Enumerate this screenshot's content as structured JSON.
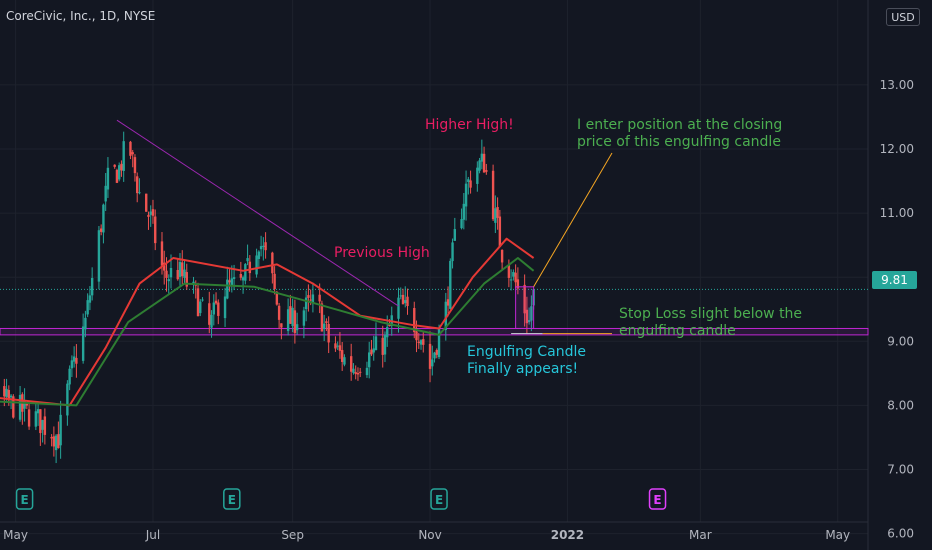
{
  "symbol_title": "CoreCivic, Inc., 1D, NYSE",
  "currency_label": "USD",
  "last_price_label": "9.81",
  "colors": {
    "background": "#131722",
    "up": "#26a69a",
    "down": "#ef5350",
    "ma_fast": "#e53935",
    "ma_slow": "#2e7d32",
    "trendline": "#9c27b0",
    "support": "#c026d3",
    "annotation_pink": "#e91e63",
    "annotation_green": "#4caf50",
    "annotation_cyan": "#26c6da",
    "callout_line": "#f5a623"
  },
  "annotations": {
    "higher_high": "Higher High!",
    "previous_high": "Previous High",
    "entry_line1": "I enter position at the closing",
    "entry_line2": "price of this engulfing candle",
    "stop_line1": "Stop Loss slight below the",
    "stop_line2": "engulfing candle",
    "engulf_line1": "Engulfing Candle",
    "engulf_line2": "Finally appears!"
  },
  "earnings_markers": [
    {
      "label": "E",
      "date": "2021-05-05",
      "style": "past"
    },
    {
      "label": "E",
      "date": "2021-08-05",
      "style": "past"
    },
    {
      "label": "E",
      "date": "2021-11-05",
      "style": "past"
    },
    {
      "label": "E",
      "date": "2022-02-10",
      "style": "upcoming"
    }
  ],
  "chart_data": {
    "type": "candlestick",
    "title": "CoreCivic, Inc., 1D, NYSE",
    "xlabel": "",
    "ylabel": "",
    "x_tick_labels": [
      "May",
      "Jul",
      "Sep",
      "Nov",
      "2022",
      "Mar",
      "May"
    ],
    "x_tick_dates": [
      "2021-05-01",
      "2021-07-01",
      "2021-09-01",
      "2021-11-01",
      "2022-01-01",
      "2022-03-01",
      "2022-05-01"
    ],
    "y_tick_labels": [
      "6.00",
      "7.00",
      "8.00",
      "9.00",
      "10.00",
      "11.00",
      "12.00",
      "13.00"
    ],
    "ylim": [
      5.9,
      13.95
    ],
    "last_price": 9.81,
    "x_range": [
      "2021-04-01",
      "2022-05-10"
    ],
    "price_path": [
      [
        "2021-04-01",
        8.3
      ],
      [
        "2021-04-25",
        8.1
      ],
      [
        "2021-05-10",
        7.8
      ],
      [
        "2021-05-20",
        7.5
      ],
      [
        "2021-05-25",
        8.4
      ],
      [
        "2021-06-01",
        9.3
      ],
      [
        "2021-06-06",
        10.4
      ],
      [
        "2021-06-11",
        11.5
      ],
      [
        "2021-06-16",
        11.7
      ],
      [
        "2021-06-20",
        12.1
      ],
      [
        "2021-06-25",
        11.3
      ],
      [
        "2021-06-30",
        10.9
      ],
      [
        "2021-07-06",
        10.0
      ],
      [
        "2021-07-12",
        10.1
      ],
      [
        "2021-07-20",
        9.7
      ],
      [
        "2021-07-26",
        9.2
      ],
      [
        "2021-08-01",
        9.8
      ],
      [
        "2021-08-10",
        9.9
      ],
      [
        "2021-08-17",
        10.6
      ],
      [
        "2021-08-22",
        10.1
      ],
      [
        "2021-08-26",
        9.4
      ],
      [
        "2021-09-01",
        9.3
      ],
      [
        "2021-09-06",
        9.5
      ],
      [
        "2021-09-12",
        9.6
      ],
      [
        "2021-09-17",
        9.0
      ],
      [
        "2021-09-27",
        8.6
      ],
      [
        "2021-10-06",
        8.8
      ],
      [
        "2021-10-12",
        9.0
      ],
      [
        "2021-10-18",
        9.6
      ],
      [
        "2021-10-23",
        9.4
      ],
      [
        "2021-10-28",
        9.1
      ],
      [
        "2021-11-01",
        8.6
      ],
      [
        "2021-11-04",
        9.0
      ],
      [
        "2021-11-08",
        9.5
      ],
      [
        "2021-11-12",
        10.6
      ],
      [
        "2021-11-17",
        11.4
      ],
      [
        "2021-11-21",
        11.7
      ],
      [
        "2021-11-25",
        11.8
      ],
      [
        "2021-11-29",
        11.1
      ],
      [
        "2021-12-03",
        10.4
      ],
      [
        "2021-12-08",
        10.0
      ],
      [
        "2021-12-12",
        9.6
      ],
      [
        "2021-12-15",
        9.3
      ],
      [
        "2021-12-17",
        9.81
      ]
    ],
    "series": [
      {
        "type": "moving_average",
        "color": "#e53935",
        "values": [
          [
            "2021-04-01",
            8.2
          ],
          [
            "2021-05-25",
            8.0
          ],
          [
            "2021-06-10",
            8.9
          ],
          [
            "2021-06-25",
            9.9
          ],
          [
            "2021-07-10",
            10.3
          ],
          [
            "2021-08-10",
            10.1
          ],
          [
            "2021-08-25",
            10.2
          ],
          [
            "2021-09-10",
            9.9
          ],
          [
            "2021-10-01",
            9.4
          ],
          [
            "2021-10-25",
            9.25
          ],
          [
            "2021-11-05",
            9.2
          ],
          [
            "2021-11-20",
            10.0
          ],
          [
            "2021-12-05",
            10.6
          ],
          [
            "2021-12-17",
            10.3
          ]
        ]
      },
      {
        "type": "moving_average",
        "color": "#2e7d32",
        "values": [
          [
            "2021-04-01",
            8.1
          ],
          [
            "2021-05-28",
            8.0
          ],
          [
            "2021-06-20",
            9.3
          ],
          [
            "2021-07-15",
            9.9
          ],
          [
            "2021-08-15",
            9.85
          ],
          [
            "2021-09-10",
            9.6
          ],
          [
            "2021-10-10",
            9.3
          ],
          [
            "2021-11-05",
            9.1
          ],
          [
            "2021-11-25",
            9.9
          ],
          [
            "2021-12-10",
            10.3
          ],
          [
            "2021-12-17",
            10.1
          ]
        ]
      }
    ],
    "drawings": {
      "trendline": {
        "from": [
          "2021-06-15",
          12.45
        ],
        "to": [
          "2021-10-18",
          9.55
        ]
      },
      "support_band": [
        9.1,
        9.2
      ],
      "entry_box": {
        "x0": "2021-12-09",
        "x1": "2021-12-17",
        "y0": 9.2,
        "y1": 9.85
      },
      "stop_line": {
        "from": [
          "2021-12-07",
          9.12
        ],
        "to": [
          "2021-12-21",
          9.12
        ]
      }
    }
  }
}
